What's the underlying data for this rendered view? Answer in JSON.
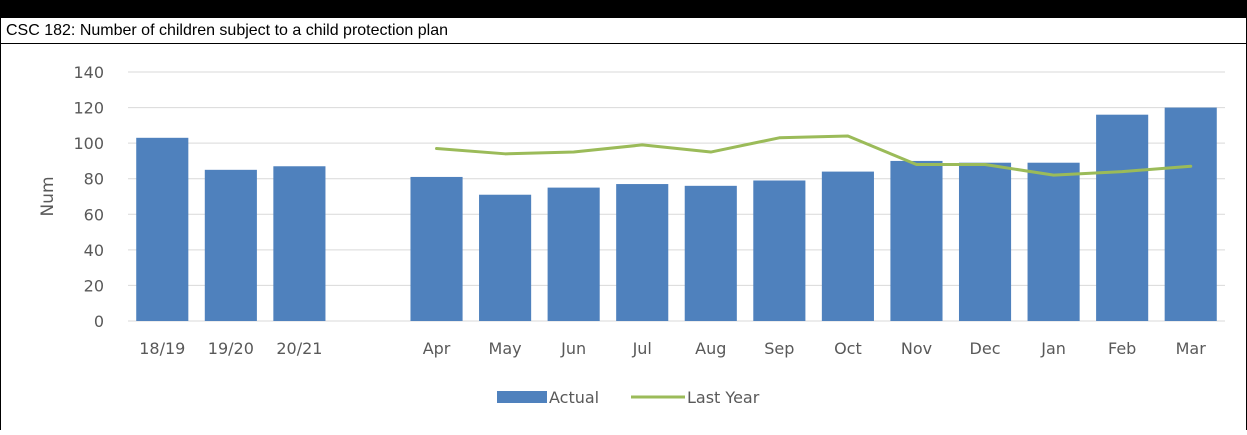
{
  "title": "CSC 182: Number of children subject to a child protection plan",
  "chart_data": {
    "type": "bar",
    "title": "CSC 182: Number of children subject to a child protection plan",
    "ylabel": "Num",
    "xlabel": "",
    "ylim": [
      0,
      140
    ],
    "yticks": [
      0,
      20,
      40,
      60,
      80,
      100,
      120,
      140
    ],
    "grid": true,
    "legend_position": "bottom",
    "categories": [
      "18/19",
      "19/20",
      "20/21",
      "",
      "Apr",
      "May",
      "Jun",
      "Jul",
      "Aug",
      "Sep",
      "Oct",
      "Nov",
      "Dec",
      "Jan",
      "Feb",
      "Mar"
    ],
    "series": [
      {
        "name": "Actual",
        "type": "bar",
        "color": "#4f81bd",
        "values": [
          103,
          85,
          87,
          null,
          81,
          71,
          75,
          77,
          76,
          79,
          84,
          90,
          89,
          89,
          116,
          120
        ]
      },
      {
        "name": "Last Year",
        "type": "line",
        "color": "#9bbb59",
        "values": [
          null,
          null,
          null,
          null,
          97,
          94,
          95,
          99,
          95,
          103,
          104,
          88,
          88,
          82,
          84,
          87
        ]
      }
    ]
  }
}
